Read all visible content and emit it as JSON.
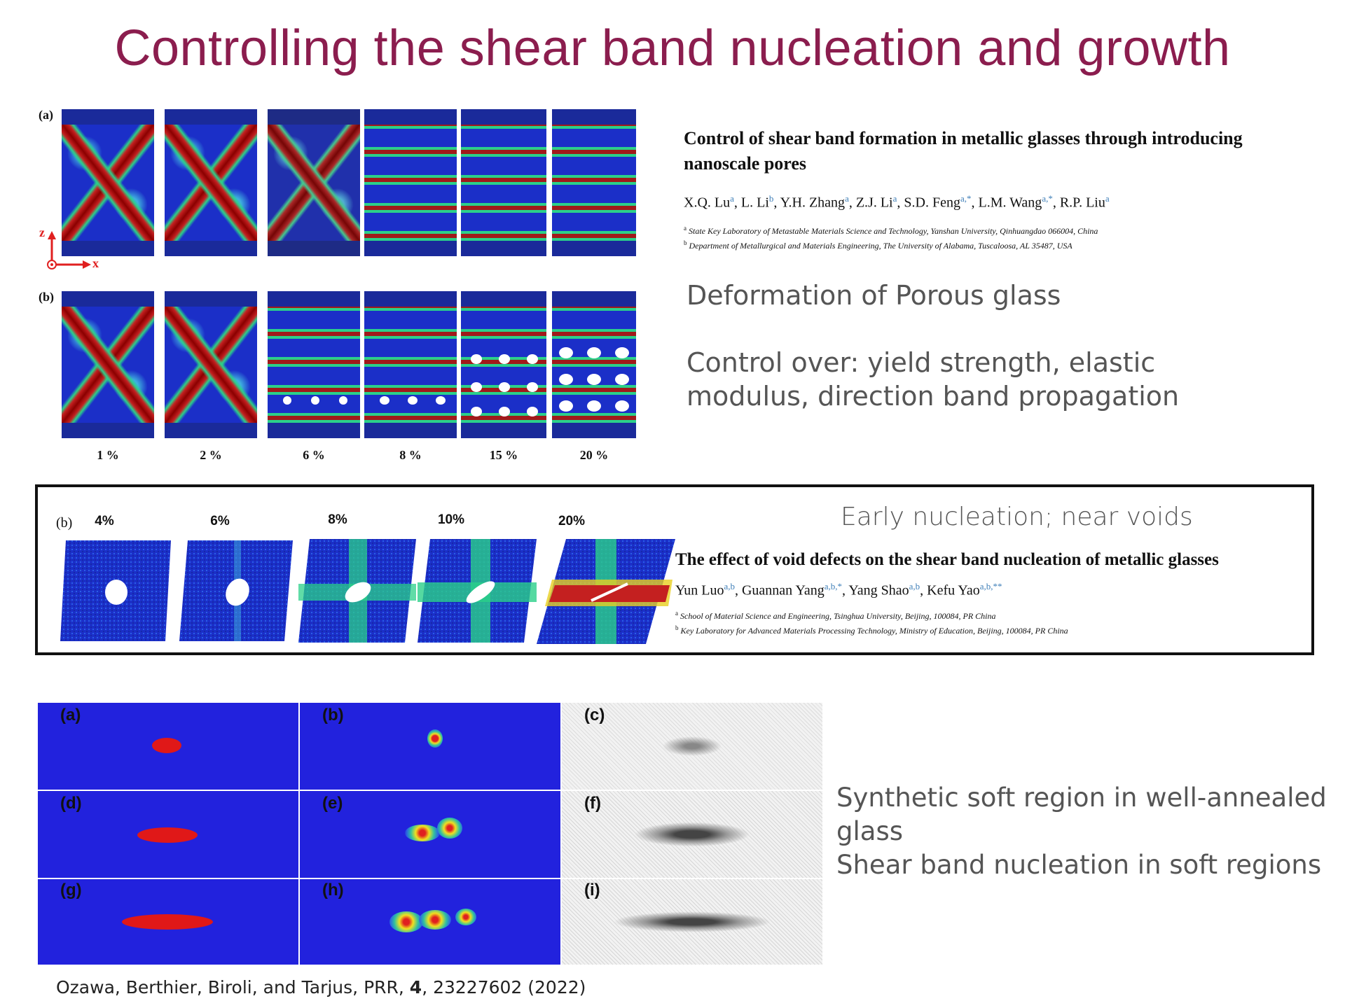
{
  "title": "Controlling the shear band nucleation and growth",
  "paper1": {
    "title": "Control of shear band formation in metallic glasses through introducing nanoscale pores",
    "authors": [
      {
        "name": "X.Q. Lu",
        "sup": "a"
      },
      {
        "name": "L. Li",
        "sup": "b"
      },
      {
        "name": "Y.H. Zhang",
        "sup": "a"
      },
      {
        "name": "Z.J. Li",
        "sup": "a"
      },
      {
        "name": "S.D. Feng",
        "sup": "a,*"
      },
      {
        "name": "L.M. Wang",
        "sup": "a,*"
      },
      {
        "name": "R.P. Liu",
        "sup": "a"
      }
    ],
    "affiliations": [
      {
        "sup": "a",
        "text": "State Key Laboratory of Metastable Materials Science and Technology, Yanshan University, Qinhuangdao 066004, China"
      },
      {
        "sup": "b",
        "text": "Department of Metallurgical and Materials Engineering, The University of Alabama, Tuscaloosa, AL 35487, USA"
      }
    ],
    "bullets": [
      "Deformation of Porous glass",
      "Control over: yield strength, elastic modulus, direction band propagation"
    ]
  },
  "figure1": {
    "label_a": "(a)",
    "label_b": "(b)",
    "axis_z": "z",
    "axis_x": "x",
    "strains": [
      "1 %",
      "2 %",
      "6 %",
      "8 %",
      "15 %",
      "20 %"
    ]
  },
  "paper2": {
    "heading": "Early nucleation; near voids",
    "title": "The effect of void defects on the shear band nucleation of metallic glasses",
    "authors": [
      {
        "name": "Yun Luo",
        "sup": "a,b"
      },
      {
        "name": "Guannan Yang",
        "sup": "a,b,*"
      },
      {
        "name": "Yang Shao",
        "sup": "a,b"
      },
      {
        "name": "Kefu Yao",
        "sup": "a,b,**"
      }
    ],
    "affiliations": [
      {
        "sup": "a",
        "text": "School of Material Science and Engineering, Tsinghua University, Beijing, 100084, PR China"
      },
      {
        "sup": "b",
        "text": "Key Laboratory for Advanced Materials Processing Technology, Ministry of Education, Beijing, 100084, PR China"
      }
    ]
  },
  "figure2": {
    "label": "(b)",
    "strains": [
      "4%",
      "6%",
      "8%",
      "10%",
      "20%"
    ]
  },
  "figure3": {
    "labels": [
      "(a)",
      "(b)",
      "(c)",
      "(d)",
      "(e)",
      "(f)",
      "(g)",
      "(h)",
      "(i)"
    ]
  },
  "paper3": {
    "bullets": [
      "Synthetic soft region in well-annealed glass",
      "Shear band nucleation in soft regions"
    ],
    "citation_prefix": "Ozawa, Berthier, Biroli, and Tarjus, PRR, ",
    "citation_volume": "4",
    "citation_suffix": ", 23227602 (2022)"
  }
}
